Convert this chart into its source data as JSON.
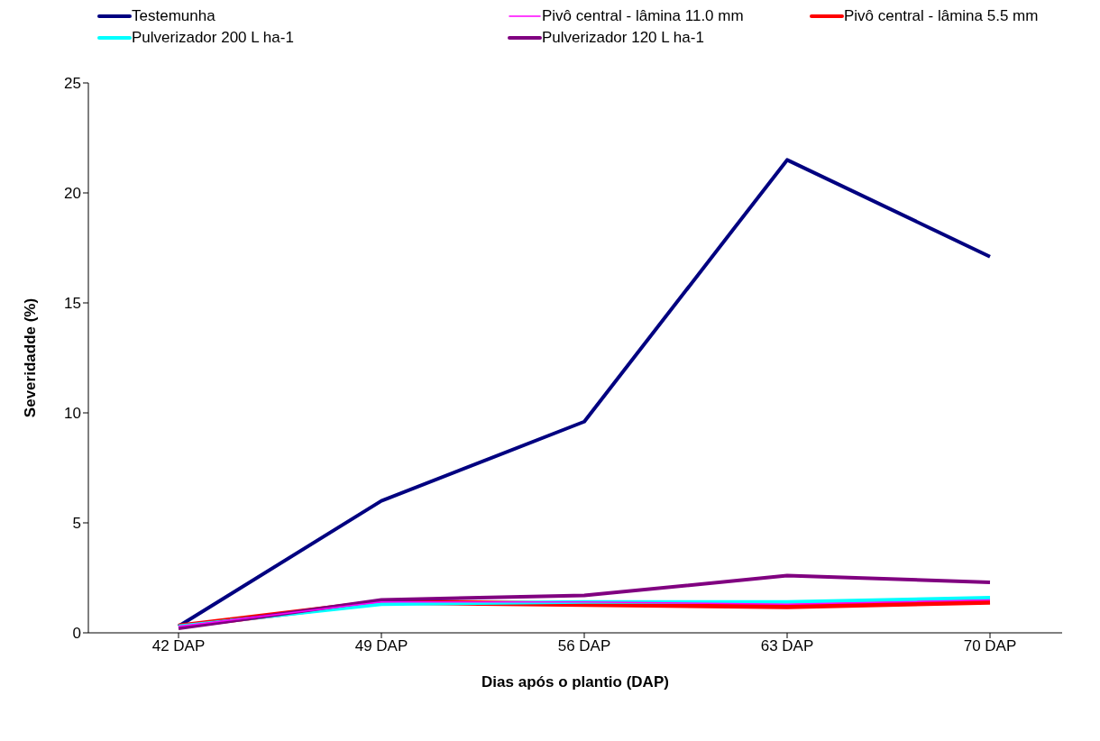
{
  "chart_data": {
    "type": "line",
    "xlabel": "Dias após o plantio (DAP)",
    "ylabel": "Severidadde (%)",
    "categories": [
      "42 DAP",
      "49 DAP",
      "56 DAP",
      "63 DAP",
      "70 DAP"
    ],
    "series": [
      {
        "name": "Testemunha",
        "color": "#000080",
        "values": [
          0.3,
          6.0,
          9.6,
          21.5,
          17.1
        ]
      },
      {
        "name": "Pivô central - lâmina 11.0 mm",
        "color": "#ff00ff",
        "values": [
          0.3,
          1.4,
          1.4,
          1.3,
          1.5
        ]
      },
      {
        "name": "Pivô central - lâmina 5.5 mm",
        "color": "#ff0000",
        "values": [
          0.3,
          1.4,
          1.3,
          1.2,
          1.4
        ]
      },
      {
        "name": "Pulverizador 200 L ha-1",
        "color": "#00ffff",
        "values": [
          0.3,
          1.3,
          1.4,
          1.4,
          1.6
        ]
      },
      {
        "name": "Pulverizador 120 L ha-1",
        "color": "#800080",
        "values": [
          0.2,
          1.5,
          1.7,
          2.6,
          2.3
        ]
      }
    ],
    "ylim": [
      0,
      25
    ],
    "yticks": [
      0,
      5,
      10,
      15,
      20,
      25
    ],
    "grid": false,
    "legend": "top",
    "marker": "none",
    "line_style": "solid"
  }
}
